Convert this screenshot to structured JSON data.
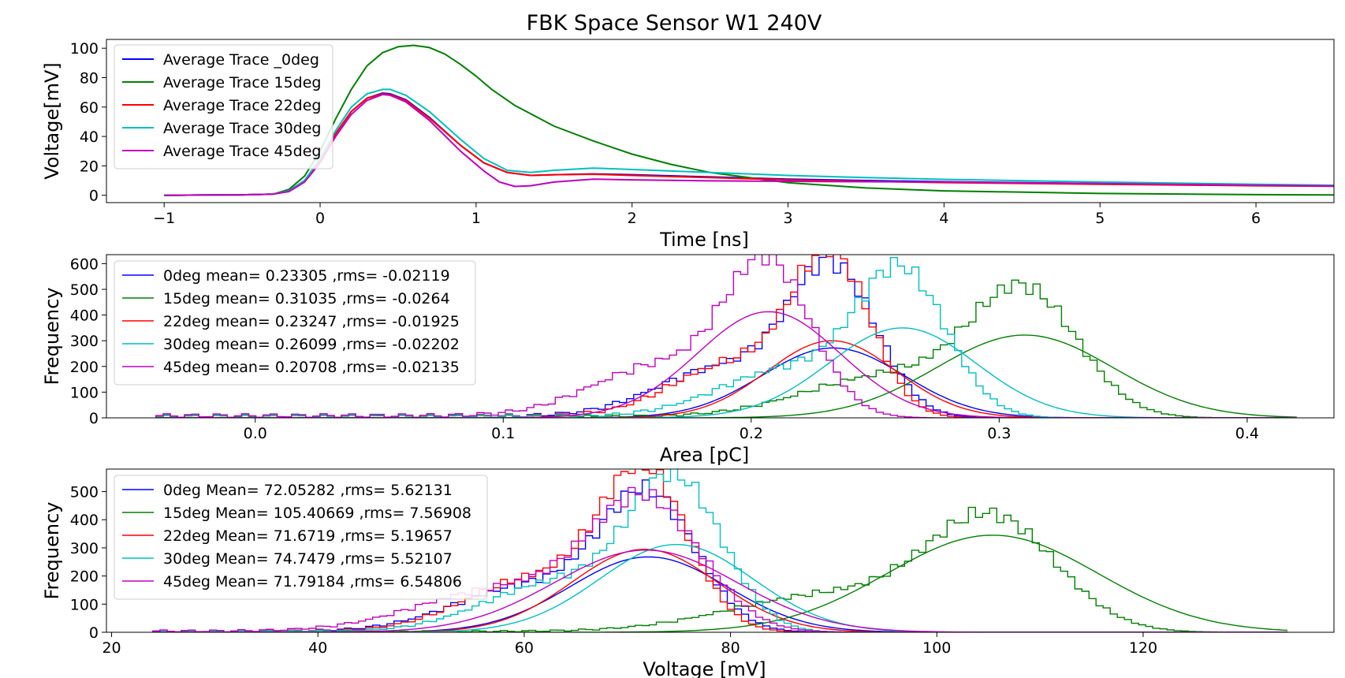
{
  "figure": {
    "title": "FBK Space Sensor W1 240V"
  },
  "colors": {
    "0deg": "#0000ff",
    "15deg": "#008000",
    "22deg": "#ff0000",
    "30deg": "#00bfbf",
    "45deg": "#bf00bf"
  },
  "chart_data": [
    {
      "type": "line",
      "xlabel": "Time [ns]",
      "ylabel": "Voltage[mV]",
      "xlim": [
        -1.37,
        6.5
      ],
      "ylim": [
        -5,
        106
      ],
      "xticks": [
        -1,
        0,
        1,
        2,
        3,
        4,
        5,
        6
      ],
      "xtick_labels": [
        "−1",
        "0",
        "1",
        "2",
        "3",
        "4",
        "5",
        "6"
      ],
      "yticks": [
        0,
        20,
        40,
        60,
        80,
        100
      ],
      "legend_loc": "upper-left",
      "series": [
        {
          "name": "Average Trace _0deg",
          "color": "#0000ff",
          "x": [
            -1,
            -0.5,
            -0.3,
            -0.2,
            -0.1,
            0,
            0.1,
            0.2,
            0.3,
            0.4,
            0.45,
            0.55,
            0.7,
            0.9,
            1.05,
            1.2,
            1.35,
            1.5,
            1.75,
            2,
            2.5,
            3,
            3.5,
            4,
            5,
            6,
            6.5
          ],
          "y": [
            0,
            0.3,
            0.8,
            3,
            10,
            24,
            42,
            57,
            66,
            69.5,
            69,
            65,
            53,
            34,
            22,
            15.5,
            13.5,
            14,
            14.5,
            14,
            12.5,
            11,
            10,
            9.2,
            8,
            6.8,
            6.3
          ]
        },
        {
          "name": "Average Trace 15deg",
          "color": "#008000",
          "x": [
            -1,
            -0.5,
            -0.3,
            -0.2,
            -0.1,
            0,
            0.1,
            0.2,
            0.3,
            0.4,
            0.5,
            0.6,
            0.7,
            0.8,
            0.9,
            1,
            1.1,
            1.25,
            1.5,
            1.75,
            2,
            2.25,
            2.5,
            3,
            3.5,
            4,
            5,
            6,
            6.5
          ],
          "y": [
            0,
            0.3,
            0.8,
            4,
            13,
            30,
            52,
            72,
            88,
            97,
            101,
            102,
            100.5,
            96,
            89,
            81,
            72,
            61,
            47,
            37,
            28,
            21,
            15.5,
            8.5,
            5,
            3,
            1.2,
            0.4,
            0.2
          ]
        },
        {
          "name": "Average Trace 22deg",
          "color": "#ff0000",
          "x": [
            -1,
            -0.5,
            -0.3,
            -0.2,
            -0.1,
            0,
            0.1,
            0.2,
            0.3,
            0.4,
            0.45,
            0.55,
            0.7,
            0.9,
            1.05,
            1.2,
            1.35,
            1.5,
            1.75,
            2,
            2.5,
            3,
            3.5,
            4,
            5,
            6,
            6.5
          ],
          "y": [
            0,
            0.3,
            0.8,
            3,
            10,
            24,
            42,
            57,
            66,
            69,
            68.5,
            64.5,
            52.5,
            34,
            22,
            15.5,
            13.5,
            14,
            14.3,
            13.5,
            12,
            10.5,
            9.5,
            8.6,
            7.5,
            6.5,
            6.1
          ]
        },
        {
          "name": "Average Trace 30deg",
          "color": "#00bfbf",
          "x": [
            -1,
            -0.5,
            -0.3,
            -0.2,
            -0.1,
            0,
            0.1,
            0.2,
            0.3,
            0.4,
            0.45,
            0.55,
            0.7,
            0.9,
            1.05,
            1.2,
            1.35,
            1.5,
            1.75,
            2,
            2.5,
            3,
            3.5,
            4,
            5,
            6,
            6.5
          ],
          "y": [
            0,
            0.3,
            0.8,
            3,
            10,
            25,
            44,
            60,
            69,
            72,
            72,
            68,
            57,
            38,
            25,
            17,
            15.5,
            17,
            18.5,
            17.5,
            15.5,
            13.5,
            12,
            10.8,
            9,
            7.5,
            6.8
          ]
        },
        {
          "name": "Average Trace 45deg",
          "color": "#bf00bf",
          "x": [
            -1,
            -0.5,
            -0.3,
            -0.2,
            -0.1,
            0,
            0.1,
            0.2,
            0.3,
            0.4,
            0.45,
            0.55,
            0.7,
            0.9,
            1.05,
            1.15,
            1.25,
            1.35,
            1.5,
            1.75,
            2,
            2.5,
            3,
            3.5,
            4,
            5,
            6,
            6.5
          ],
          "y": [
            0,
            0.3,
            0.8,
            2.5,
            9,
            22,
            40,
            55,
            64.5,
            68.5,
            68,
            63.5,
            51,
            30,
            16.5,
            9,
            6,
            6.5,
            9,
            11,
            10.5,
            9.8,
            9.5,
            9.2,
            9,
            8,
            6.8,
            6.3
          ]
        }
      ]
    },
    {
      "type": "histogram",
      "xlabel": "Area [pC]",
      "ylabel": "Frequency",
      "xlim": [
        -0.06,
        0.435
      ],
      "ylim": [
        0,
        635
      ],
      "xticks": [
        0.0,
        0.1,
        0.2,
        0.3,
        0.4
      ],
      "xtick_labels": [
        "0.0",
        "0.1",
        "0.2",
        "0.3",
        "0.4"
      ],
      "yticks": [
        0,
        100,
        200,
        300,
        400,
        500,
        600
      ],
      "legend_loc": "upper-left",
      "hist_range": [
        -0.04,
        0.42
      ],
      "series": [
        {
          "name": "0deg mean= 0.23305 ,rms= -0.02119",
          "color": "#0000ff",
          "mean": 0.23305,
          "sigma": 0.02119,
          "peak": 560,
          "fit_peak": 272,
          "tail": 14
        },
        {
          "name": "15deg mean= 0.31035 ,rms= -0.0264",
          "color": "#008000",
          "mean": 0.31035,
          "sigma": 0.0264,
          "peak": 475,
          "fit_peak": 322,
          "tail": 10
        },
        {
          "name": "22deg mean= 0.23247 ,rms= -0.01925",
          "color": "#ff0000",
          "mean": 0.23247,
          "sigma": 0.01925,
          "peak": 605,
          "fit_peak": 300,
          "tail": 14
        },
        {
          "name": "30deg mean= 0.26099 ,rms= -0.02202",
          "color": "#00bfbf",
          "mean": 0.26099,
          "sigma": 0.02202,
          "peak": 545,
          "fit_peak": 350,
          "tail": 12
        },
        {
          "name": "45deg mean= 0.20708 ,rms= -0.02135",
          "color": "#bf00bf",
          "mean": 0.20708,
          "sigma": 0.02135,
          "peak": 575,
          "fit_peak": 413,
          "tail": 16
        }
      ]
    },
    {
      "type": "histogram",
      "xlabel": "Voltage [mV]",
      "ylabel": "Frequency",
      "xlim": [
        19.5,
        138.5
      ],
      "ylim": [
        0,
        580
      ],
      "xticks": [
        20,
        40,
        60,
        80,
        100,
        120
      ],
      "xtick_labels": [
        "20",
        "40",
        "60",
        "80",
        "100",
        "120"
      ],
      "yticks": [
        0,
        100,
        200,
        300,
        400,
        500
      ],
      "legend_loc": "upper-left",
      "hist_range": [
        24,
        134
      ],
      "series": [
        {
          "name": "0deg Mean= 72.05282 ,rms= 5.62131",
          "color": "#0000ff",
          "mean": 72.05282,
          "sigma": 5.62131,
          "peak": 470,
          "fit_peak": 268,
          "tail": 8
        },
        {
          "name": "15deg Mean= 105.40669 ,rms= 7.56908",
          "color": "#008000",
          "mean": 105.40669,
          "sigma": 7.56908,
          "peak": 390,
          "fit_peak": 345,
          "tail": 6
        },
        {
          "name": "22deg Mean= 71.6719 ,rms= 5.19657",
          "color": "#ff0000",
          "mean": 71.6719,
          "sigma": 5.19657,
          "peak": 550,
          "fit_peak": 295,
          "tail": 8
        },
        {
          "name": "30deg Mean= 74.7479 ,rms= 5.52107",
          "color": "#00bfbf",
          "mean": 74.7479,
          "sigma": 5.52107,
          "peak": 520,
          "fit_peak": 312,
          "tail": 6
        },
        {
          "name": "45deg Mean= 71.79184 ,rms= 6.54806",
          "color": "#bf00bf",
          "mean": 71.79184,
          "sigma": 6.54806,
          "peak": 450,
          "fit_peak": 292,
          "tail": 8
        }
      ]
    }
  ]
}
